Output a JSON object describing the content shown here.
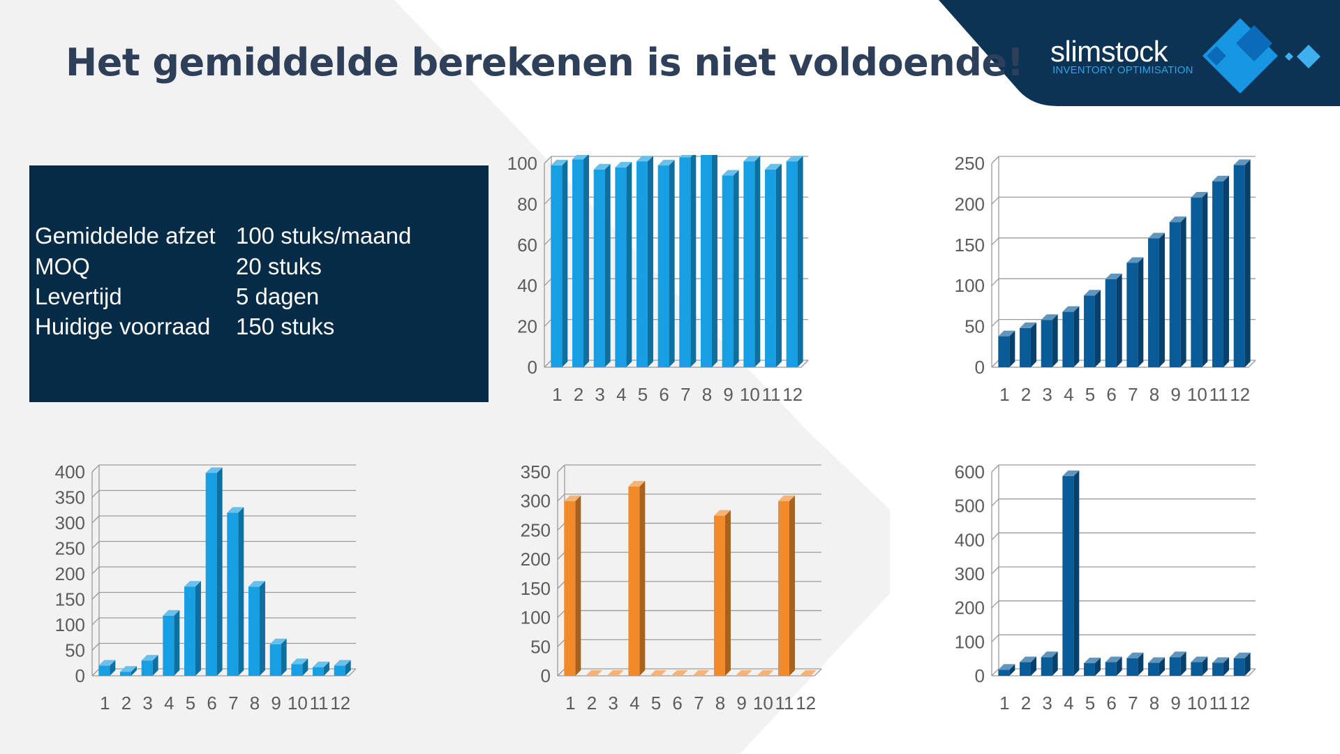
{
  "title": "Het gemiddelde berekenen is niet voldoende!",
  "logo": {
    "name": "slimstock",
    "tagline": "INVENTORY OPTIMISATION"
  },
  "info": [
    {
      "label": "Gemiddelde afzet",
      "value": "100 stuks/maand"
    },
    {
      "label": "MOQ",
      "value": "20 stuks"
    },
    {
      "label": "Levertijd",
      "value": "5 dagen"
    },
    {
      "label": "Huidige voorraad",
      "value": "150 stuks"
    }
  ],
  "colors": {
    "navy": "#0c3254",
    "title": "#2e3f5a",
    "blue": "#16a0e3",
    "dark_blue": "#0a5c99",
    "orange": "#f28a2a"
  },
  "chart_data": [
    {
      "type": "bar",
      "name": "stable-demand",
      "categories": [
        "1",
        "2",
        "3",
        "4",
        "5",
        "6",
        "7",
        "8",
        "9",
        "10",
        "11",
        "12"
      ],
      "values": [
        99,
        102,
        97,
        98,
        101,
        99,
        103,
        107,
        94,
        101,
        97,
        101
      ],
      "ylim": [
        0,
        100
      ],
      "yticks": [
        0,
        20,
        40,
        60,
        80,
        100
      ],
      "color": "#16a0e3"
    },
    {
      "type": "bar",
      "name": "growing-demand",
      "categories": [
        "1",
        "2",
        "3",
        "4",
        "5",
        "6",
        "7",
        "8",
        "9",
        "10",
        "11",
        "12"
      ],
      "values": [
        38,
        48,
        58,
        68,
        88,
        108,
        128,
        158,
        178,
        208,
        228,
        248
      ],
      "ylim": [
        0,
        250
      ],
      "yticks": [
        0,
        50,
        100,
        150,
        200,
        250
      ],
      "color": "#0a5c99"
    },
    {
      "type": "bar",
      "name": "seasonal-demand",
      "categories": [
        "1",
        "2",
        "3",
        "4",
        "5",
        "6",
        "7",
        "8",
        "9",
        "10",
        "11",
        "12"
      ],
      "values": [
        20,
        8,
        30,
        118,
        175,
        398,
        320,
        175,
        62,
        23,
        17,
        20
      ],
      "ylim": [
        0,
        400
      ],
      "yticks": [
        0,
        50,
        100,
        150,
        200,
        250,
        300,
        350,
        400
      ],
      "color": "#16a0e3"
    },
    {
      "type": "bar",
      "name": "intermittent-demand",
      "categories": [
        "1",
        "2",
        "3",
        "4",
        "5",
        "6",
        "7",
        "8",
        "9",
        "10",
        "11",
        "12"
      ],
      "values": [
        300,
        0,
        0,
        325,
        0,
        0,
        0,
        275,
        0,
        0,
        300,
        0
      ],
      "ylim": [
        0,
        350
      ],
      "yticks": [
        0,
        50,
        100,
        150,
        200,
        250,
        300,
        350
      ],
      "color": "#f28a2a"
    },
    {
      "type": "bar",
      "name": "outlier-demand",
      "categories": [
        "1",
        "2",
        "3",
        "4",
        "5",
        "6",
        "7",
        "8",
        "9",
        "10",
        "11",
        "12"
      ],
      "values": [
        18,
        40,
        55,
        588,
        37,
        40,
        52,
        38,
        55,
        40,
        38,
        52
      ],
      "ylim": [
        0,
        600
      ],
      "yticks": [
        0,
        100,
        200,
        300,
        400,
        500,
        600
      ],
      "color": "#0a5c99"
    }
  ]
}
